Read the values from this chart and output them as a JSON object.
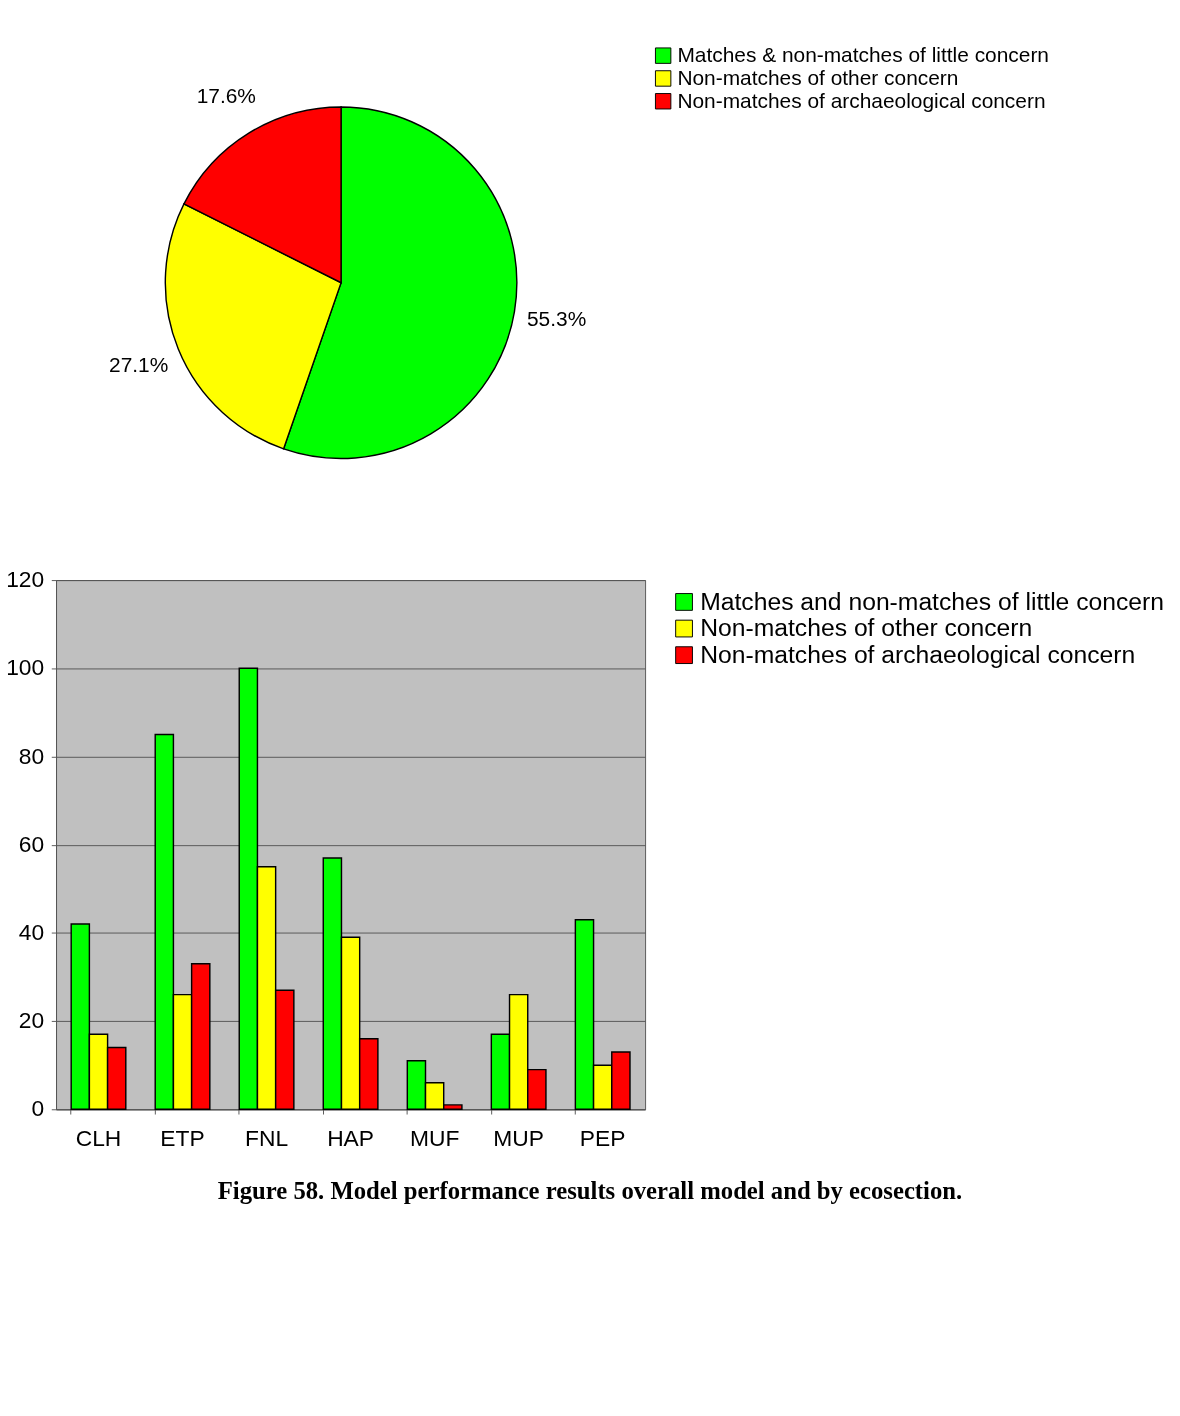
{
  "chart_data": [
    {
      "type": "pie",
      "categories": [
        "Matches & non-matches of little concern",
        "Non-matches of other concern",
        "Non-matches of archaeological concern"
      ],
      "values": [
        55.3,
        27.1,
        17.6
      ],
      "colors": [
        "#00ff00",
        "#ffff00",
        "#ff0000"
      ],
      "value_labels": [
        "55.3%",
        "27.1%",
        "17.6%"
      ],
      "legend": "right"
    },
    {
      "type": "bar",
      "categories": [
        "CLH",
        "ETP",
        "FNL",
        "HAP",
        "MUF",
        "MUP",
        "PEP"
      ],
      "series": [
        {
          "name": "Matches and non-matches of little concern",
          "color": "#00ff00",
          "values": [
            42,
            85,
            100,
            57,
            11,
            17,
            43
          ]
        },
        {
          "name": "Non-matches of other concern",
          "color": "#ffff00",
          "values": [
            17,
            26,
            55,
            39,
            6,
            26,
            10
          ]
        },
        {
          "name": "Non-matches of archaeological concern",
          "color": "#ff0000",
          "values": [
            14,
            33,
            27,
            16,
            1,
            9,
            13
          ]
        }
      ],
      "ylim": [
        0,
        120
      ],
      "yticks": [
        0,
        20,
        40,
        60,
        80,
        100,
        120
      ],
      "grid": "y",
      "legend": "right",
      "annotations": [
        "Figure 58. Model performance results overall model and by ecosection."
      ]
    }
  ]
}
